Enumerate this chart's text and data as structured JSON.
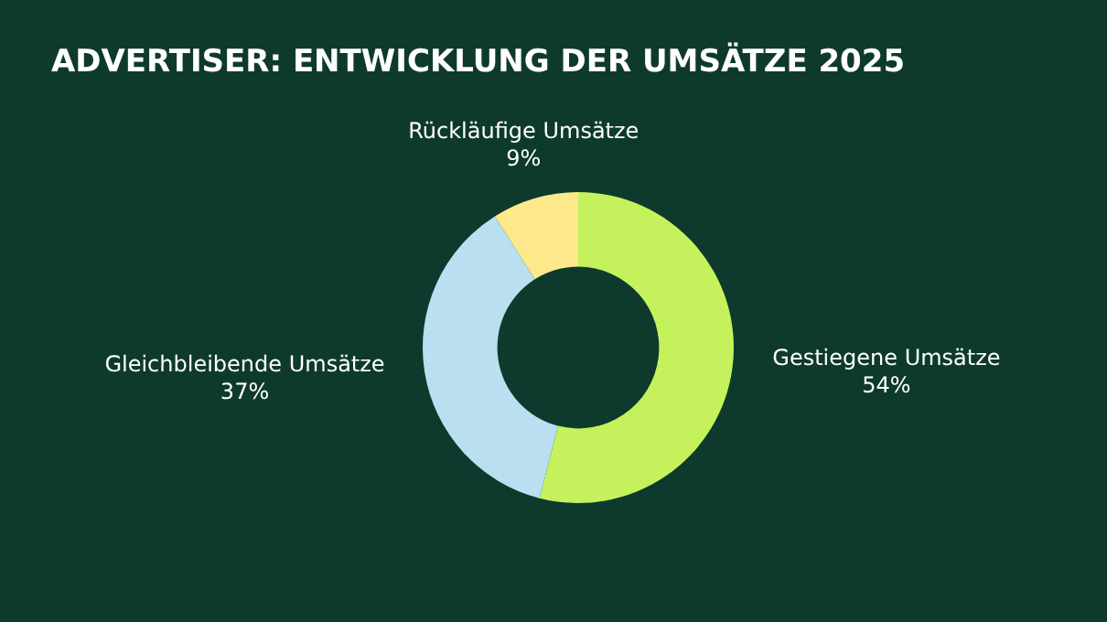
{
  "chart_data": {
    "type": "donut",
    "title": "ADVERTISER: ENTWICKLUNG DER UMSÄTZE 2025",
    "categories": [
      "Gestiegene Umsätze",
      "Gleichbleibende Umsätze",
      "Rückläufige Umsätze"
    ],
    "values": [
      54,
      37,
      9
    ],
    "colors": [
      "#c5f25c",
      "#b9dff1",
      "#fde98c"
    ],
    "value_labels": [
      "54%",
      "37%",
      "9%"
    ],
    "legend": false
  }
}
